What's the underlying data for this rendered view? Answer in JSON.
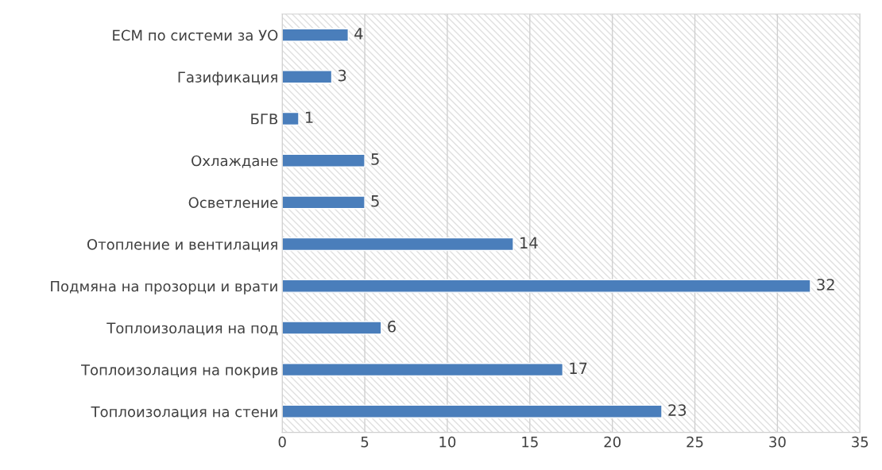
{
  "chart_data": {
    "type": "bar",
    "orientation": "horizontal",
    "categories": [
      "ЕСМ по системи за УО",
      "Газификация",
      "БГВ",
      "Охлаждане",
      "Осветление",
      "Отопление и вентилация",
      "Подмяна на прозорци и врати",
      "Топлоизолация на под",
      "Топлоизолация на покрив",
      "Топлоизолация на стени"
    ],
    "values": [
      4,
      3,
      1,
      5,
      5,
      14,
      32,
      6,
      17,
      23
    ],
    "color": "#4a7ebb",
    "data_labels": true,
    "xlim": [
      0,
      35
    ],
    "xticks": [
      0,
      5,
      10,
      15,
      20,
      25,
      30,
      35
    ],
    "grid": "x",
    "legend": false
  }
}
